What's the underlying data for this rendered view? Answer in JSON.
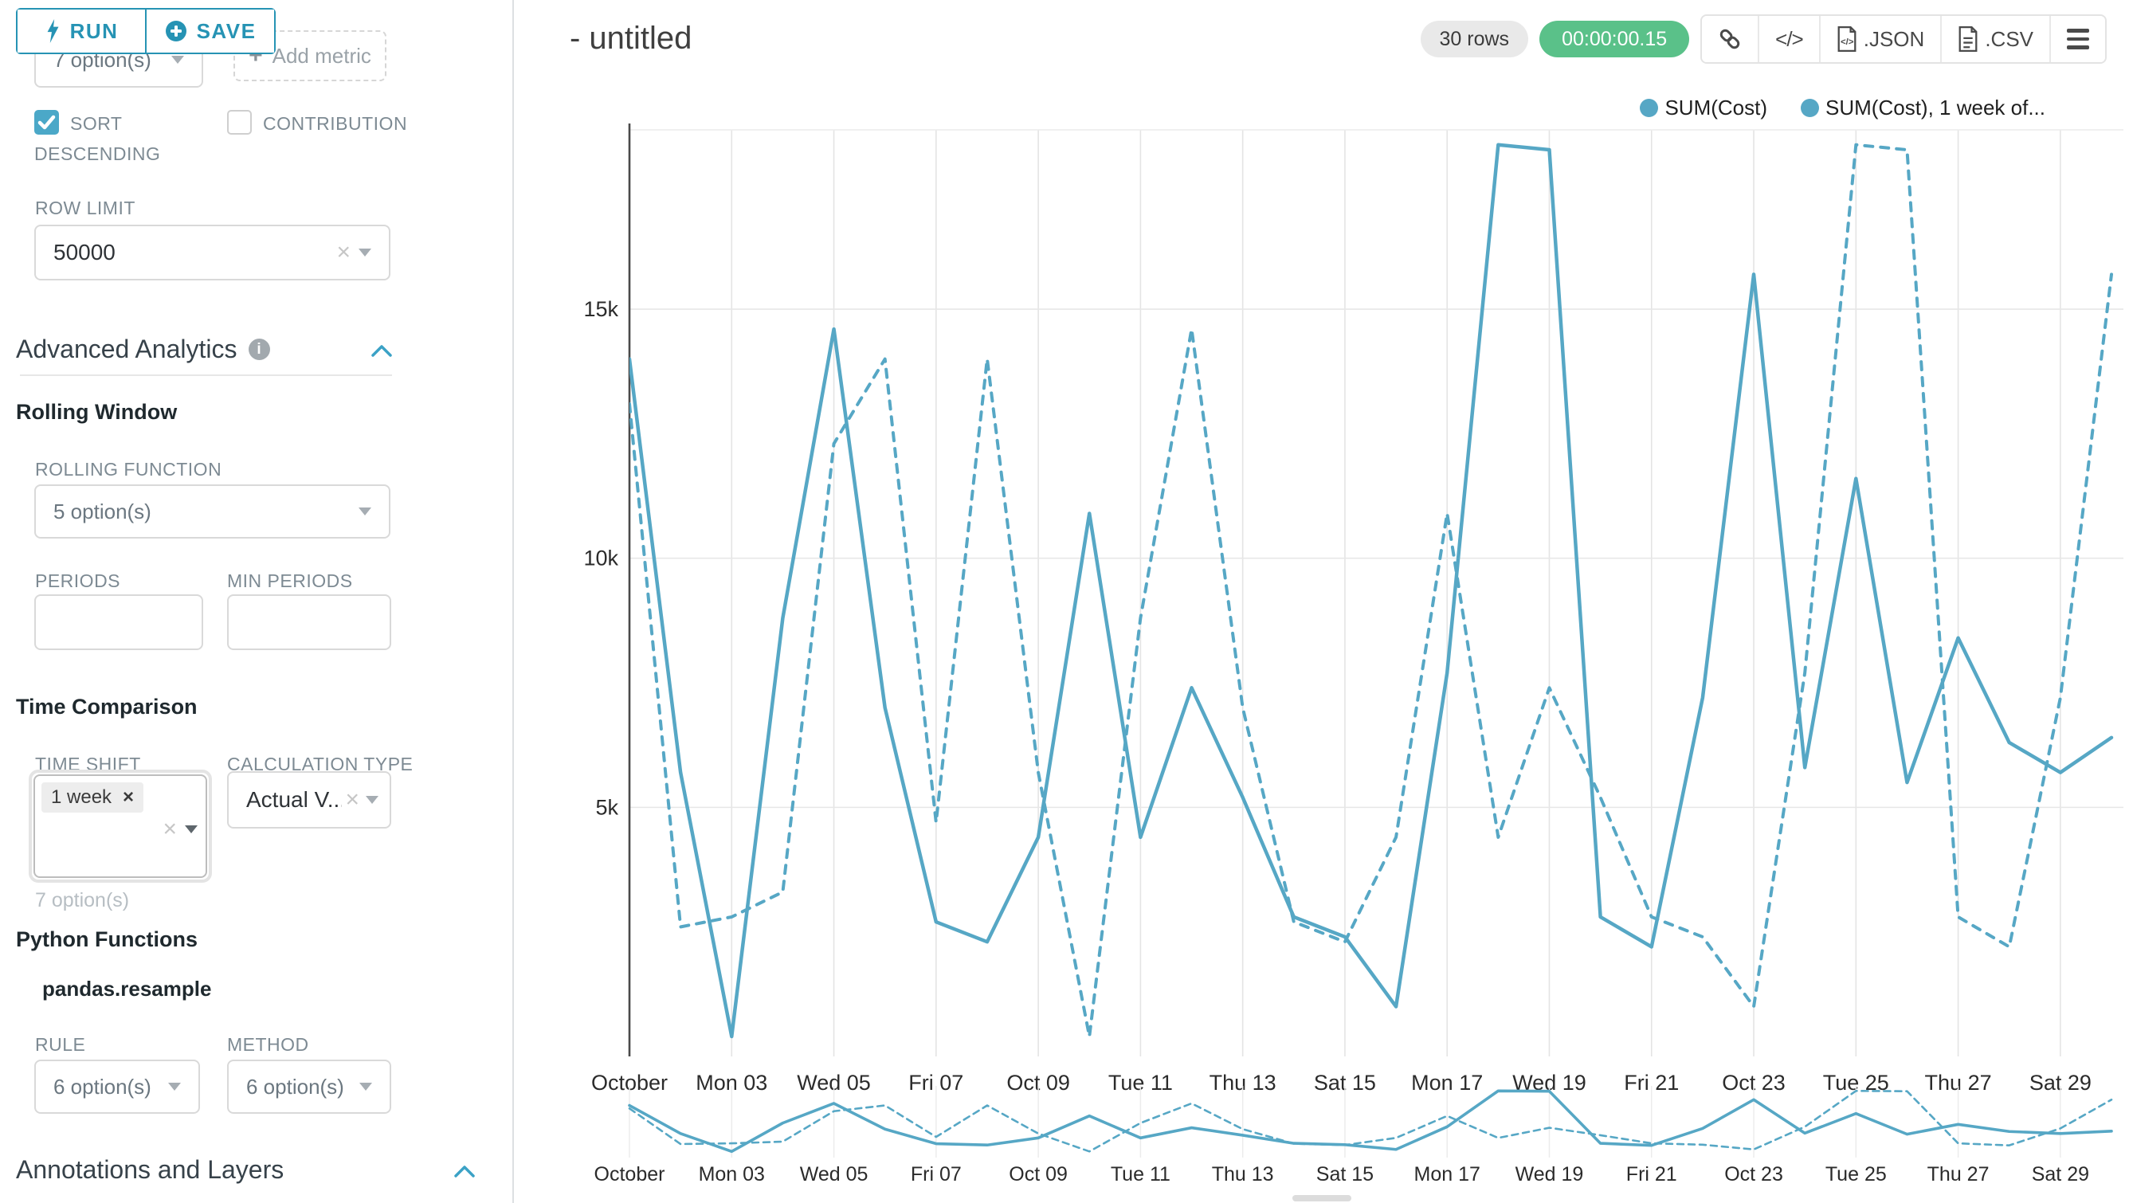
{
  "accent_color": "#2693B4",
  "sidebar": {
    "run_label": "RUN",
    "save_label": "SAVE",
    "metric_select_value": "7 option(s)",
    "add_metric_label": "Add metric",
    "sort_descending_label": "SORT DESCENDING",
    "contribution_label": "CONTRIBUTION",
    "row_limit_label": "ROW LIMIT",
    "row_limit_value": "50000",
    "advanced_analytics_title": "Advanced Analytics",
    "rolling_window_title": "Rolling Window",
    "rolling_function_label": "ROLLING FUNCTION",
    "rolling_function_value": "5 option(s)",
    "periods_label": "PERIODS",
    "min_periods_label": "MIN PERIODS",
    "time_comparison_title": "Time Comparison",
    "time_shift_label": "TIME SHIFT",
    "time_shift_chip": "1 week",
    "time_shift_helper": "7 option(s)",
    "calculation_type_label": "CALCULATION TYPE",
    "calculation_type_value": "Actual V...",
    "python_functions_title": "Python Functions",
    "pandas_resample_label": "pandas.resample",
    "rule_label": "RULE",
    "rule_value": "6 option(s)",
    "method_label": "METHOD",
    "method_value": "6 option(s)",
    "annotations_title": "Annotations and Layers"
  },
  "header": {
    "title": "- untitled",
    "rows_badge": "30 rows",
    "timer_badge": "00:00:00.15",
    "timer_color": "#5AC189",
    "json_label": ".JSON",
    "csv_label": ".CSV"
  },
  "icons": {
    "run": "lightning-bolt",
    "save": "plus-circle",
    "share": "link",
    "embed": "code",
    "export_json": "file-code",
    "export_csv": "file-lines",
    "more": "hamburger-menu",
    "info": "info-circle",
    "collapse": "chevron-up"
  },
  "chart_data": {
    "type": "line",
    "title": "",
    "xlabel": "",
    "ylabel": "",
    "x_days": [
      "Oct 01",
      "Oct 02",
      "Oct 03",
      "Oct 04",
      "Oct 05",
      "Oct 06",
      "Oct 07",
      "Oct 08",
      "Oct 09",
      "Oct 10",
      "Oct 11",
      "Oct 12",
      "Oct 13",
      "Oct 14",
      "Oct 15",
      "Oct 16",
      "Oct 17",
      "Oct 18",
      "Oct 19",
      "Oct 20",
      "Oct 21",
      "Oct 22",
      "Oct 23",
      "Oct 24",
      "Oct 25",
      "Oct 26",
      "Oct 27",
      "Oct 28",
      "Oct 29",
      "Oct 30"
    ],
    "x_tick_labels": [
      "October",
      "Mon 03",
      "Wed 05",
      "Fri 07",
      "Oct 09",
      "Tue 11",
      "Thu 13",
      "Sat 15",
      "Mon 17",
      "Wed 19",
      "Fri 21",
      "Oct 23",
      "Tue 25",
      "Thu 27",
      "Sat 29"
    ],
    "x_tick_step": 2,
    "ylim": [
      0,
      18600
    ],
    "yticks": [
      5000,
      10000,
      15000
    ],
    "ytick_labels": [
      "5k",
      "10k",
      "15k"
    ],
    "grid": true,
    "legend_position": "top-right",
    "series": [
      {
        "name": "SUM(Cost)",
        "style": "solid",
        "color": "#56A7C5",
        "values": [
          14000,
          5700,
          400,
          8800,
          14600,
          7000,
          2700,
          2300,
          4400,
          10900,
          4400,
          7400,
          5200,
          2800,
          2400,
          1000,
          7700,
          18300,
          18200,
          2800,
          2200,
          7200,
          15700,
          5800,
          11600,
          5500,
          8400,
          6300,
          5700,
          6400
        ]
      },
      {
        "name": "SUM(Cost), 1 week of...",
        "style": "dashed",
        "color": "#56A7C5",
        "values": [
          13100,
          2600,
          2800,
          3300,
          12300,
          14000,
          4700,
          14000,
          5700,
          400,
          8800,
          14600,
          7000,
          2700,
          2300,
          4400,
          10900,
          4400,
          7400,
          5200,
          2800,
          2400,
          1000,
          7700,
          18300,
          18200,
          2800,
          2200,
          7200,
          15700
        ]
      }
    ]
  }
}
